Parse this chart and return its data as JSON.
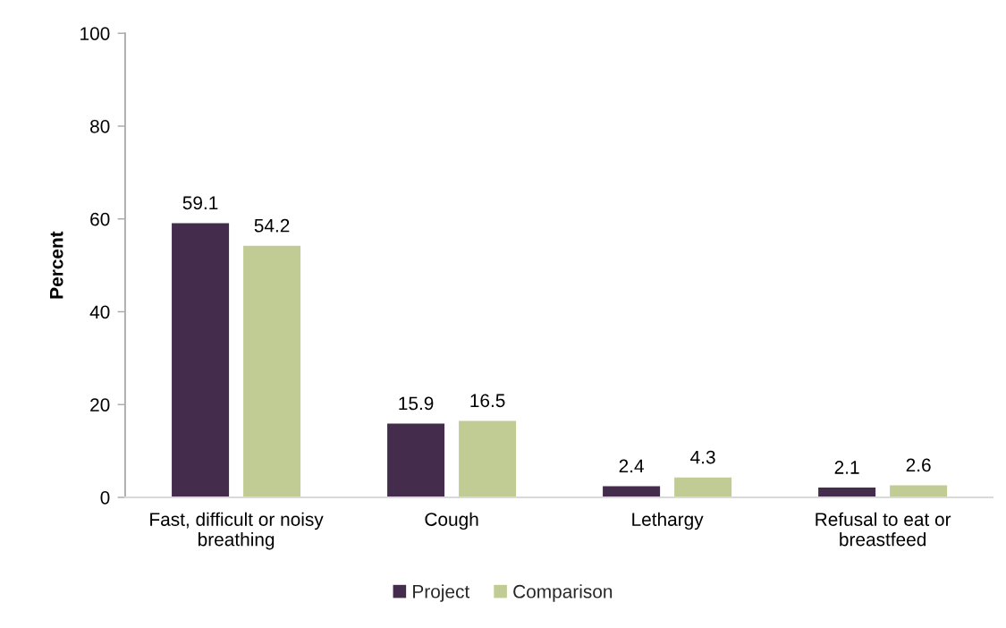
{
  "chart_data": {
    "type": "bar",
    "ylabel": "Percent",
    "categories": [
      "Fast, difficult or noisy\nbreathing",
      "Cough",
      "Lethargy",
      "Refusal to eat or\nbreastfeed"
    ],
    "series": [
      {
        "name": "Project",
        "color": "#442d4c",
        "values": [
          59.1,
          15.9,
          2.4,
          2.1
        ]
      },
      {
        "name": "Comparison",
        "color": "#c0cc94",
        "values": [
          54.2,
          16.5,
          4.3,
          2.6
        ]
      }
    ],
    "ylim": [
      0,
      100
    ],
    "yticks": [
      0,
      20,
      40,
      60,
      80,
      100
    ],
    "grid": false,
    "legend": "bottom",
    "data_labels": true
  }
}
